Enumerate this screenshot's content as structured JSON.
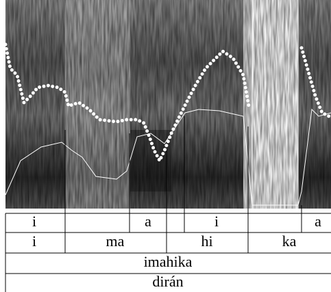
{
  "tiers": [
    {
      "labels": [
        "i",
        "a",
        "i",
        "a"
      ]
    },
    {
      "labels": [
        "i",
        "ma",
        "hi",
        "ka"
      ]
    },
    {
      "labels": [
        "imahika"
      ]
    },
    {
      "labels": [
        "dirán"
      ]
    }
  ]
}
